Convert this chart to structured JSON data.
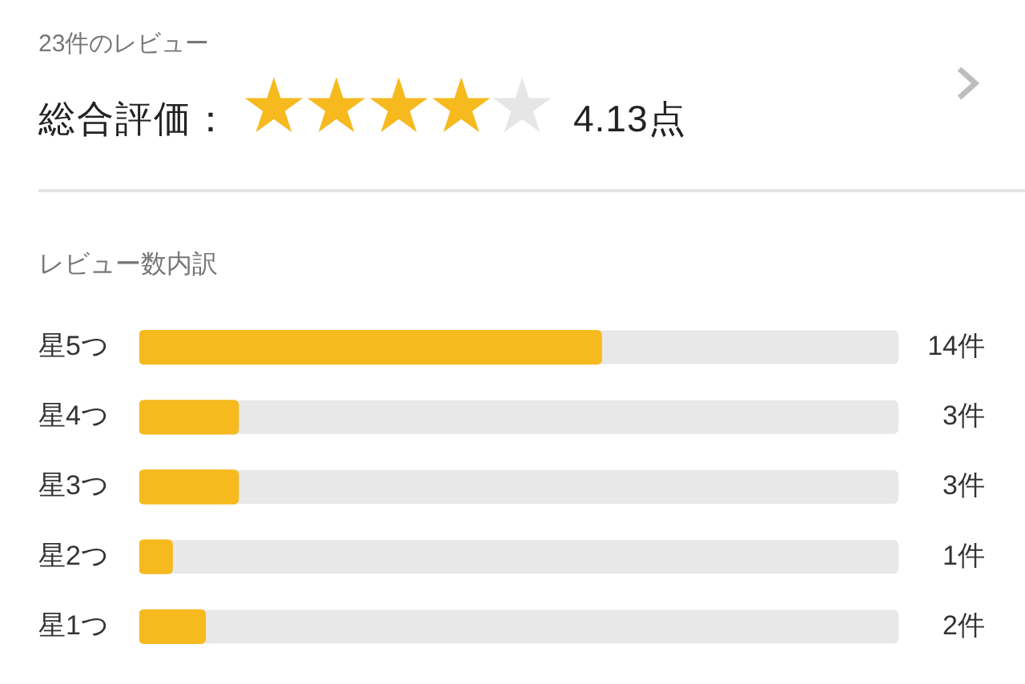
{
  "chart_data": {
    "type": "bar",
    "orientation": "horizontal",
    "title": "レビュー数内訳",
    "annotations": [
      "23件のレビュー",
      "総合評価：",
      "4.13点"
    ],
    "categories": [
      "星5つ",
      "星4つ",
      "星3つ",
      "星2つ",
      "星1つ"
    ],
    "values": [
      14,
      3,
      3,
      1,
      2
    ],
    "value_labels": [
      "14件",
      "3件",
      "3件",
      "1件",
      "2件"
    ],
    "color": "#f6b91e",
    "xlim": [
      0,
      23
    ],
    "tick_labels": "y",
    "legend": false
  }
}
